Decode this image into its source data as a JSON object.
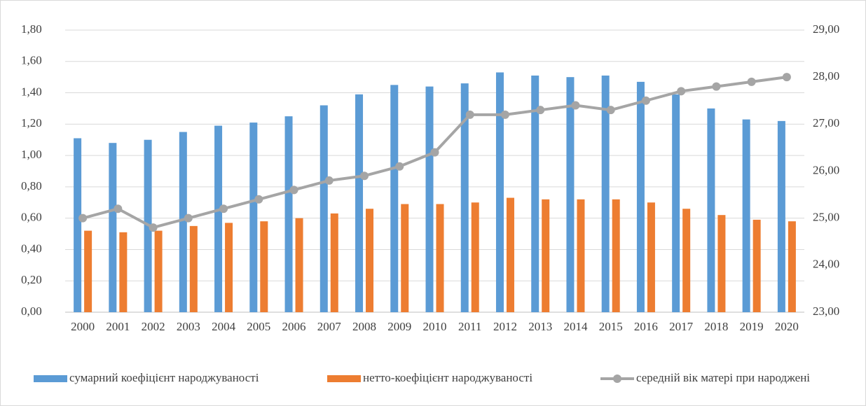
{
  "chart_data": {
    "type": "bar",
    "categories": [
      "2000",
      "2001",
      "2002",
      "2003",
      "2004",
      "2005",
      "2006",
      "2007",
      "2008",
      "2009",
      "2010",
      "2011",
      "2012",
      "2013",
      "2014",
      "2015",
      "2016",
      "2017",
      "2018",
      "2019",
      "2020"
    ],
    "series": [
      {
        "name": "сумарний коефіцієнт народжуваності",
        "type": "bar",
        "color": "#5b9bd5",
        "values": [
          1.11,
          1.08,
          1.1,
          1.15,
          1.19,
          1.21,
          1.25,
          1.32,
          1.39,
          1.45,
          1.44,
          1.46,
          1.53,
          1.51,
          1.5,
          1.51,
          1.47,
          1.39,
          1.3,
          1.23,
          1.22
        ]
      },
      {
        "name": "нетто-коефіцієнт народжуваності",
        "type": "bar",
        "color": "#ed7d31",
        "values": [
          0.52,
          0.51,
          0.52,
          0.55,
          0.57,
          0.58,
          0.6,
          0.63,
          0.66,
          0.69,
          0.69,
          0.7,
          0.73,
          0.72,
          0.72,
          0.72,
          0.7,
          0.66,
          0.62,
          0.59,
          0.58
        ]
      },
      {
        "name": "середній вік матері при народжені",
        "type": "line",
        "axis": "y2",
        "color": "#a5a5a5",
        "values": [
          25.0,
          25.2,
          24.8,
          25.0,
          25.2,
          25.4,
          25.6,
          25.8,
          25.9,
          26.1,
          26.4,
          27.2,
          27.2,
          27.3,
          27.4,
          27.3,
          27.5,
          27.7,
          27.8,
          27.9,
          28.0
        ]
      }
    ],
    "ylim": [
      0,
      1.8
    ],
    "yticks": [
      {
        "value": 0,
        "label": "0,00"
      },
      {
        "value": 0.2,
        "label": "0,20"
      },
      {
        "value": 0.4,
        "label": "0,40"
      },
      {
        "value": 0.6,
        "label": "0,60"
      },
      {
        "value": 0.8,
        "label": "0,80"
      },
      {
        "value": 1.0,
        "label": "1,00"
      },
      {
        "value": 1.2,
        "label": "1,20"
      },
      {
        "value": 1.4,
        "label": "1,40"
      },
      {
        "value": 1.6,
        "label": "1,60"
      },
      {
        "value": 1.8,
        "label": "1,80"
      }
    ],
    "y2lim": [
      23,
      29
    ],
    "y2ticks": [
      {
        "value": 23,
        "label": "23,00"
      },
      {
        "value": 24,
        "label": "24,00"
      },
      {
        "value": 25,
        "label": "25,00"
      },
      {
        "value": 26,
        "label": "26,00"
      },
      {
        "value": 27,
        "label": "27,00"
      },
      {
        "value": 28,
        "label": "28,00"
      },
      {
        "value": 29,
        "label": "29,00"
      }
    ],
    "grid": true,
    "legend": "bottom"
  }
}
